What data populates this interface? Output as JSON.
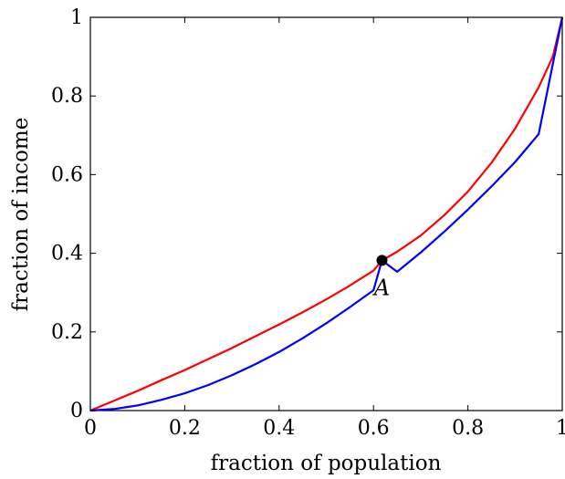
{
  "chart_data": {
    "type": "line",
    "title": "",
    "xlabel": "fraction of population",
    "ylabel": "fraction of income",
    "xlim": [
      0,
      1
    ],
    "ylim": [
      0,
      1
    ],
    "grid": false,
    "legend": "none",
    "x_ticks": [
      {
        "value": 0,
        "label": "0"
      },
      {
        "value": 0.2,
        "label": "0.2"
      },
      {
        "value": 0.4,
        "label": "0.4"
      },
      {
        "value": 0.6,
        "label": "0.6"
      },
      {
        "value": 0.8,
        "label": "0.8"
      },
      {
        "value": 1,
        "label": "1"
      }
    ],
    "y_ticks": [
      {
        "value": 0,
        "label": "0"
      },
      {
        "value": 0.2,
        "label": "0.2"
      },
      {
        "value": 0.4,
        "label": "0.4"
      },
      {
        "value": 0.6,
        "label": "0.6"
      },
      {
        "value": 0.8,
        "label": "0.8"
      },
      {
        "value": 1,
        "label": "1"
      }
    ],
    "series": [
      {
        "color": "#ff0000",
        "x": [
          0,
          0.05,
          0.1,
          0.15,
          0.2,
          0.25,
          0.3,
          0.35,
          0.4,
          0.45,
          0.5,
          0.55,
          0.6,
          0.618,
          0.65,
          0.7,
          0.75,
          0.8,
          0.85,
          0.9,
          0.95,
          0.98,
          1
        ],
        "y": [
          0,
          0.025,
          0.05,
          0.077,
          0.103,
          0.131,
          0.159,
          0.189,
          0.219,
          0.25,
          0.283,
          0.318,
          0.356,
          0.382,
          0.404,
          0.445,
          0.497,
          0.557,
          0.63,
          0.717,
          0.822,
          0.9,
          1
        ]
      },
      {
        "color": "#0000ff",
        "x": [
          0,
          0.05,
          0.1,
          0.15,
          0.2,
          0.25,
          0.3,
          0.35,
          0.4,
          0.45,
          0.5,
          0.55,
          0.6,
          0.618,
          0.65,
          0.7,
          0.75,
          0.8,
          0.85,
          0.9,
          0.95,
          1
        ],
        "y": [
          0,
          0.004,
          0.013,
          0.027,
          0.044,
          0.065,
          0.09,
          0.118,
          0.149,
          0.184,
          0.222,
          0.263,
          0.306,
          0.382,
          0.353,
          0.402,
          0.455,
          0.511,
          0.57,
          0.632,
          0.703,
          1
        ]
      }
    ],
    "point": {
      "x": 0.618,
      "y": 0.382,
      "label": "A",
      "color": "#000000"
    }
  }
}
